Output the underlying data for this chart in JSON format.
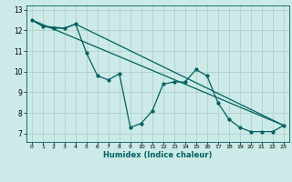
{
  "title": "",
  "xlabel": "Humidex (Indice chaleur)",
  "background_color": "#cceae7",
  "grid_color": "#b0d0cc",
  "line_color": "#006060",
  "xlim": [
    -0.5,
    23.5
  ],
  "ylim": [
    6.6,
    13.2
  ],
  "yticks": [
    7,
    8,
    9,
    10,
    11,
    12,
    13
  ],
  "xticks": [
    0,
    1,
    2,
    3,
    4,
    5,
    6,
    7,
    8,
    9,
    10,
    11,
    12,
    13,
    14,
    15,
    16,
    17,
    18,
    19,
    20,
    21,
    22,
    23
  ],
  "line1_x": [
    0,
    1,
    2,
    3,
    4,
    5,
    6,
    7,
    8,
    9,
    10,
    11,
    12,
    13,
    14,
    15,
    16,
    17,
    18,
    19,
    20,
    21,
    22,
    23
  ],
  "line1_y": [
    12.5,
    12.2,
    12.1,
    12.1,
    12.3,
    10.9,
    9.8,
    9.6,
    9.9,
    7.3,
    7.5,
    8.1,
    9.4,
    9.5,
    9.5,
    10.1,
    9.8,
    8.5,
    7.7,
    7.3,
    7.1,
    7.1,
    7.1,
    7.4
  ],
  "line2_x": [
    0,
    1,
    3,
    4,
    23
  ],
  "line2_y": [
    12.5,
    12.2,
    12.1,
    12.3,
    7.4
  ],
  "line3_x": [
    0,
    23
  ],
  "line3_y": [
    12.5,
    7.4
  ]
}
